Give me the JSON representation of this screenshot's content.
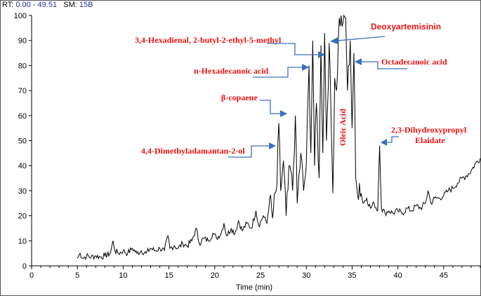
{
  "header": {
    "rt_label": "RT:",
    "rt_value": "0.00 - 49.51",
    "sm_label": "SM:",
    "sm_value": "15B"
  },
  "colors": {
    "trace": "#000000",
    "annotation_text": "#ee1111",
    "annotation_arrow": "#3a6fbf"
  },
  "chart_data": {
    "type": "line",
    "xlabel": "Time (min)",
    "ylabel": "",
    "xlim": [
      0,
      49
    ],
    "ylim": [
      0,
      100
    ],
    "x_ticks": [
      0,
      5,
      10,
      15,
      20,
      25,
      30,
      35,
      40,
      45
    ],
    "y_ticks": [
      0,
      10,
      20,
      30,
      40,
      50,
      60,
      70,
      80,
      90,
      100
    ],
    "series": [
      {
        "name": "",
        "points": [
          [
            5.0,
            3
          ],
          [
            5.3,
            5
          ],
          [
            5.6,
            3
          ],
          [
            6.0,
            4
          ],
          [
            6.5,
            3.5
          ],
          [
            7.0,
            4
          ],
          [
            7.5,
            3.5
          ],
          [
            8.0,
            4
          ],
          [
            8.6,
            5
          ],
          [
            8.9,
            10
          ],
          [
            9.1,
            6
          ],
          [
            9.5,
            5
          ],
          [
            10.0,
            6
          ],
          [
            10.5,
            5
          ],
          [
            11.0,
            7
          ],
          [
            11.5,
            5
          ],
          [
            12.0,
            6
          ],
          [
            12.5,
            5
          ],
          [
            13.0,
            7
          ],
          [
            13.5,
            6
          ],
          [
            14.0,
            7
          ],
          [
            14.5,
            6
          ],
          [
            14.9,
            12
          ],
          [
            15.1,
            7
          ],
          [
            15.6,
            8
          ],
          [
            16.0,
            7
          ],
          [
            16.5,
            9
          ],
          [
            17.0,
            8
          ],
          [
            17.5,
            10
          ],
          [
            18.0,
            15
          ],
          [
            18.3,
            9
          ],
          [
            18.8,
            11
          ],
          [
            19.3,
            10
          ],
          [
            19.8,
            13
          ],
          [
            20.2,
            11
          ],
          [
            20.7,
            13
          ],
          [
            21.0,
            17
          ],
          [
            21.3,
            12
          ],
          [
            21.8,
            15
          ],
          [
            22.2,
            13
          ],
          [
            22.6,
            18
          ],
          [
            23.0,
            14
          ],
          [
            23.5,
            17
          ],
          [
            24.0,
            15
          ],
          [
            24.5,
            22
          ],
          [
            24.8,
            16
          ],
          [
            25.3,
            20
          ],
          [
            25.7,
            17
          ],
          [
            26.0,
            27
          ],
          [
            26.3,
            19
          ],
          [
            26.8,
            33
          ],
          [
            27.0,
            57
          ],
          [
            27.2,
            30
          ],
          [
            27.5,
            42
          ],
          [
            27.8,
            20
          ],
          [
            28.2,
            40
          ],
          [
            28.5,
            30
          ],
          [
            28.8,
            60
          ],
          [
            29.0,
            25
          ],
          [
            29.4,
            45
          ],
          [
            29.7,
            30
          ],
          [
            30.0,
            40
          ],
          [
            30.3,
            80
          ],
          [
            30.5,
            45
          ],
          [
            30.7,
            90
          ],
          [
            30.9,
            40
          ],
          [
            31.1,
            65
          ],
          [
            31.4,
            35
          ],
          [
            31.6,
            88
          ],
          [
            31.8,
            45
          ],
          [
            32.0,
            93
          ],
          [
            32.2,
            50
          ],
          [
            32.5,
            89
          ],
          [
            32.7,
            60
          ],
          [
            32.9,
            29
          ],
          [
            33.1,
            75
          ],
          [
            33.3,
            70
          ],
          [
            33.6,
            99
          ],
          [
            34.0,
            97
          ],
          [
            34.3,
            99
          ],
          [
            34.5,
            70
          ],
          [
            34.8,
            90
          ],
          [
            35.0,
            55
          ],
          [
            35.2,
            85
          ],
          [
            35.4,
            35
          ],
          [
            35.6,
            28
          ],
          [
            35.8,
            33
          ],
          [
            36.2,
            25
          ],
          [
            36.6,
            27
          ],
          [
            37.0,
            23
          ],
          [
            37.4,
            25
          ],
          [
            37.8,
            22
          ],
          [
            38.0,
            48
          ],
          [
            38.2,
            23
          ],
          [
            38.6,
            21
          ],
          [
            39.0,
            22
          ],
          [
            39.5,
            21
          ],
          [
            40.0,
            22
          ],
          [
            40.5,
            21
          ],
          [
            41.0,
            23
          ],
          [
            41.5,
            22
          ],
          [
            42.0,
            24
          ],
          [
            42.5,
            23
          ],
          [
            43.0,
            25
          ],
          [
            43.3,
            30
          ],
          [
            43.6,
            25
          ],
          [
            44.0,
            27
          ],
          [
            44.5,
            27
          ],
          [
            45.0,
            28
          ],
          [
            45.5,
            30
          ],
          [
            46.0,
            31
          ],
          [
            46.5,
            33
          ],
          [
            47.0,
            35
          ],
          [
            47.5,
            36
          ],
          [
            48.0,
            38
          ],
          [
            48.5,
            41
          ],
          [
            49.0,
            43
          ]
        ]
      }
    ],
    "annotations": [
      {
        "text": "3,4-Hexadienal, 2-butyl-2-ethyl-5-methyl",
        "style": "serif"
      },
      {
        "text": "Deoxyartemisinin",
        "style": "sans"
      },
      {
        "text": "n-Hexadecanoic acid",
        "style": "serif"
      },
      {
        "text": "Octadecanoic acid",
        "style": "serif"
      },
      {
        "text": "β-copaene",
        "style": "serif"
      },
      {
        "text": "Oleic Acid",
        "style": "serif"
      },
      {
        "text": "2,3-Dihydroxypropyl",
        "style": "serif"
      },
      {
        "text": "Elaidate",
        "style": "serif"
      },
      {
        "text": "4,4-Dimethyladamantan-2-ol",
        "style": "serif"
      }
    ]
  }
}
